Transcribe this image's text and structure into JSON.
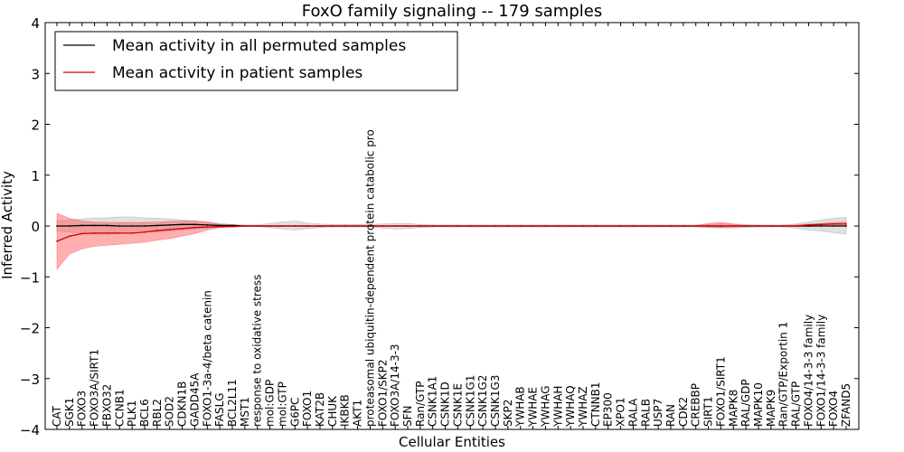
{
  "chart_data": {
    "type": "line",
    "title": "FoxO family signaling -- 179 samples",
    "xlabel": "Cellular Entities",
    "ylabel": "Inferred Activity",
    "ylim": [
      -4,
      4
    ],
    "yticks": [
      -4,
      -3,
      -2,
      -1,
      0,
      1,
      2,
      3,
      4
    ],
    "ytick_labels": [
      "−4",
      "−3",
      "−2",
      "−1",
      "0",
      "1",
      "2",
      "3",
      "4"
    ],
    "legend_position": "top-left",
    "categories": [
      "CAT",
      "SGK1",
      "FOXO3",
      "FOXO3A/SIRT1",
      "FBXO32",
      "CCNB1",
      "PLK1",
      "BCL6",
      "RBL2",
      "SOD2",
      "CDKN1B",
      "GADD45A",
      "FOXO1-3a-4/beta catenin",
      "FASLG",
      "BCL2L11",
      "MST1",
      "response to oxidative stress",
      "mol:GDP",
      "mol:GTP",
      "G6PC",
      "FOXO1",
      "KAT2B",
      "CHUK",
      "IKBKB",
      "AKT1",
      "proteasomal ubiquitin-dependent protein catabolic pro",
      "FOXO1/SKP2",
      "FOXO3A/14-3-3",
      "SFN",
      "Ran/GTP",
      "CSNK1A1",
      "CSNK1D",
      "CSNK1E",
      "CSNK1G1",
      "CSNK1G2",
      "CSNK1G3",
      "SKP2",
      "YWHAB",
      "YWHAE",
      "YWHAG",
      "YWHAH",
      "YWHAQ",
      "YWHAZ",
      "CTNNB1",
      "EP300",
      "XPO1",
      "RALA",
      "RALB",
      "USP7",
      "RAN",
      "CDK2",
      "CREBBP",
      "SIRT1",
      "FOXO1/SIRT1",
      "MAPK8",
      "RAL/GDP",
      "MAPK10",
      "MAPK9",
      "Ran/GTP/Exportin 1",
      "RAL/GTP",
      "FOXO4/14-3-3 family",
      "FOXO1/14-3-3 family",
      "FOXO4",
      "ZFAND5"
    ],
    "series": [
      {
        "name": "Mean activity in all permuted samples",
        "color": "#000000",
        "values": [
          0.0,
          0.0,
          0.01,
          0.01,
          0.01,
          0.0,
          0.0,
          0.0,
          0.01,
          0.02,
          0.03,
          0.03,
          0.02,
          0.01,
          0.01,
          0.0,
          0.0,
          0.0,
          0.0,
          0.0,
          0.0,
          0.0,
          0.0,
          0.0,
          0.0,
          0.0,
          0.0,
          0.0,
          0.0,
          0.0,
          0.0,
          0.0,
          0.0,
          0.0,
          0.0,
          0.0,
          0.0,
          0.0,
          0.0,
          0.0,
          0.0,
          0.0,
          0.0,
          0.0,
          0.0,
          0.0,
          0.0,
          0.0,
          0.0,
          0.0,
          0.0,
          0.0,
          0.0,
          0.0,
          0.0,
          0.0,
          0.0,
          0.0,
          0.0,
          0.0,
          0.0,
          0.0,
          0.0,
          0.0
        ],
        "band_lower": [
          -0.1,
          -0.12,
          -0.14,
          -0.16,
          -0.16,
          -0.15,
          -0.14,
          -0.12,
          -0.12,
          -0.1,
          -0.08,
          -0.06,
          -0.04,
          -0.03,
          -0.02,
          -0.01,
          -0.01,
          -0.03,
          -0.06,
          -0.08,
          -0.05,
          -0.03,
          -0.02,
          -0.02,
          -0.02,
          -0.02,
          -0.04,
          -0.06,
          -0.05,
          -0.03,
          -0.02,
          -0.02,
          -0.02,
          -0.02,
          -0.02,
          -0.02,
          -0.02,
          -0.02,
          -0.02,
          -0.02,
          -0.02,
          -0.02,
          -0.02,
          -0.02,
          -0.02,
          -0.02,
          -0.02,
          -0.02,
          -0.02,
          -0.02,
          -0.02,
          -0.02,
          -0.03,
          -0.04,
          -0.04,
          -0.03,
          -0.02,
          -0.02,
          -0.02,
          -0.04,
          -0.08,
          -0.1,
          -0.13,
          -0.16
        ],
        "band_upper": [
          0.1,
          0.12,
          0.14,
          0.16,
          0.16,
          0.18,
          0.18,
          0.16,
          0.15,
          0.14,
          0.12,
          0.1,
          0.08,
          0.05,
          0.03,
          0.02,
          0.02,
          0.05,
          0.08,
          0.1,
          0.06,
          0.04,
          0.03,
          0.03,
          0.03,
          0.03,
          0.04,
          0.05,
          0.05,
          0.03,
          0.02,
          0.02,
          0.02,
          0.02,
          0.02,
          0.02,
          0.02,
          0.02,
          0.02,
          0.02,
          0.02,
          0.02,
          0.02,
          0.02,
          0.02,
          0.02,
          0.02,
          0.02,
          0.02,
          0.02,
          0.02,
          0.02,
          0.03,
          0.04,
          0.04,
          0.03,
          0.02,
          0.02,
          0.02,
          0.04,
          0.08,
          0.12,
          0.15,
          0.17
        ],
        "band_color": "#999999"
      },
      {
        "name": "Mean activity in patient samples",
        "color": "#d40000",
        "values": [
          -0.3,
          -0.2,
          -0.15,
          -0.14,
          -0.14,
          -0.14,
          -0.14,
          -0.12,
          -0.09,
          -0.07,
          -0.05,
          -0.03,
          -0.02,
          -0.01,
          -0.01,
          0.0,
          0.0,
          0.0,
          0.0,
          0.0,
          0.0,
          0.0,
          0.0,
          0.0,
          0.0,
          0.0,
          0.0,
          0.0,
          0.0,
          0.0,
          0.0,
          0.0,
          0.0,
          0.0,
          0.0,
          0.0,
          0.0,
          0.0,
          0.0,
          0.0,
          0.0,
          0.0,
          0.0,
          0.0,
          0.0,
          0.0,
          0.0,
          0.0,
          0.0,
          0.0,
          0.0,
          0.0,
          0.0,
          0.0,
          0.0,
          0.0,
          0.0,
          0.0,
          0.0,
          0.0,
          0.02,
          0.03,
          0.04,
          0.04
        ],
        "band_lower": [
          -0.85,
          -0.55,
          -0.45,
          -0.4,
          -0.38,
          -0.36,
          -0.34,
          -0.32,
          -0.28,
          -0.25,
          -0.2,
          -0.15,
          -0.08,
          -0.03,
          -0.02,
          -0.01,
          -0.01,
          -0.01,
          -0.01,
          -0.01,
          -0.01,
          -0.01,
          -0.01,
          -0.01,
          -0.01,
          -0.01,
          -0.01,
          -0.01,
          -0.01,
          -0.01,
          -0.01,
          -0.01,
          -0.01,
          -0.01,
          -0.01,
          -0.01,
          -0.01,
          -0.01,
          -0.01,
          -0.01,
          -0.01,
          -0.01,
          -0.01,
          -0.01,
          -0.01,
          -0.01,
          -0.01,
          -0.01,
          -0.01,
          -0.01,
          -0.01,
          -0.01,
          -0.02,
          -0.03,
          -0.02,
          -0.01,
          -0.01,
          -0.01,
          -0.01,
          -0.01,
          -0.01,
          0.0,
          0.0,
          0.0
        ],
        "band_upper": [
          0.25,
          0.15,
          0.1,
          0.08,
          0.07,
          0.07,
          0.07,
          0.07,
          0.08,
          0.09,
          0.1,
          0.1,
          0.08,
          0.03,
          0.02,
          0.01,
          0.01,
          0.01,
          0.01,
          0.01,
          0.01,
          0.01,
          0.01,
          0.01,
          0.01,
          0.01,
          0.01,
          0.01,
          0.01,
          0.01,
          0.01,
          0.01,
          0.01,
          0.01,
          0.01,
          0.01,
          0.01,
          0.01,
          0.01,
          0.01,
          0.01,
          0.01,
          0.01,
          0.01,
          0.01,
          0.01,
          0.01,
          0.01,
          0.01,
          0.01,
          0.01,
          0.01,
          0.05,
          0.07,
          0.04,
          0.01,
          0.01,
          0.01,
          0.01,
          0.02,
          0.04,
          0.05,
          0.07,
          0.08
        ],
        "band_color": "#ff4d4d"
      }
    ]
  }
}
